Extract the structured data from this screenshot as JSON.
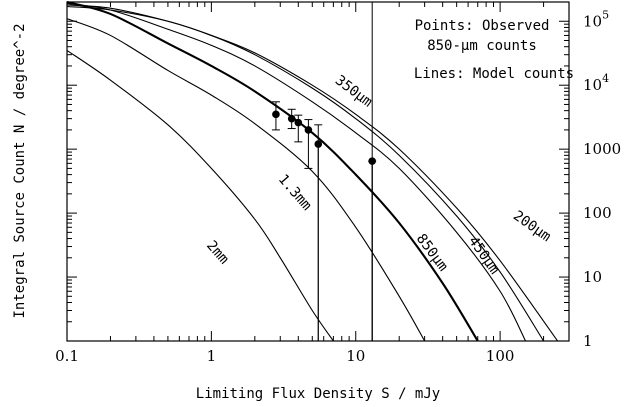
{
  "chart_data": {
    "type": "line",
    "title": "",
    "xlabel": "Limiting Flux Density S / mJy",
    "ylabel": "Integral Source Count N / degree^-2",
    "x_scale": "log",
    "y_scale": "log",
    "xlim": [
      0.1,
      300
    ],
    "ylim": [
      1,
      200000
    ],
    "x_ticks": [
      {
        "value": 0.1,
        "label": "0.1"
      },
      {
        "value": 1,
        "label": "1"
      },
      {
        "value": 10,
        "label": "10"
      },
      {
        "value": 100,
        "label": "100"
      }
    ],
    "y_ticks_right": [
      {
        "value": 100000,
        "label": "10^5"
      },
      {
        "value": 10000,
        "label": "10^4"
      },
      {
        "value": 1000,
        "label": "1000"
      },
      {
        "value": 100,
        "label": "100"
      },
      {
        "value": 10,
        "label": "10"
      },
      {
        "value": 1,
        "label": "1"
      }
    ],
    "legend": {
      "placement": "top-right",
      "points_line1": "Points: Observed",
      "points_line2": "850-μm counts",
      "lines_text": "Lines: Model counts"
    },
    "series": [
      {
        "name": "2mm",
        "label_rotation": 49,
        "label_at": {
          "x": 1.05,
          "y": 22
        },
        "x": [
          0.1,
          0.2,
          0.5,
          1,
          2,
          3,
          5,
          7
        ],
        "values": [
          35000,
          12000,
          2400,
          500,
          80,
          20,
          3,
          1
        ]
      },
      {
        "name": "1.3mm",
        "label_rotation": 49,
        "label_at": {
          "x": 3.6,
          "y": 190
        },
        "x": [
          0.1,
          0.2,
          0.5,
          1,
          2,
          5,
          10,
          20,
          30
        ],
        "values": [
          110000,
          60000,
          17000,
          7000,
          2500,
          450,
          60,
          5,
          1
        ]
      },
      {
        "name": "850μm",
        "label_rotation": 53,
        "label_at": {
          "x": 32,
          "y": 22
        },
        "bold": true,
        "x": [
          0.1,
          0.2,
          0.5,
          1,
          2,
          5,
          10,
          20,
          40,
          70
        ],
        "values": [
          200000,
          130000,
          45000,
          20000,
          8000,
          1800,
          400,
          70,
          8,
          1
        ]
      },
      {
        "name": "450μm",
        "label_rotation": 55,
        "label_at": {
          "x": 73,
          "y": 20
        },
        "x": [
          0.1,
          0.2,
          0.5,
          1,
          2,
          5,
          10,
          20,
          50,
          100,
          150
        ],
        "values": [
          190000,
          150000,
          75000,
          42000,
          20000,
          5500,
          1800,
          500,
          50,
          6,
          1
        ]
      },
      {
        "name": "350μm",
        "label_rotation": 37,
        "label_at": {
          "x": 9.3,
          "y": 7100
        },
        "x": [
          0.1,
          0.2,
          0.5,
          1,
          2,
          5,
          10,
          20,
          50,
          100,
          200
        ],
        "values": [
          180000,
          160000,
          100000,
          60000,
          30000,
          9000,
          3000,
          800,
          90,
          12,
          1
        ]
      },
      {
        "name": "200μm",
        "label_rotation": 35,
        "label_at": {
          "x": 160,
          "y": 55
        },
        "x": [
          0.1,
          0.2,
          0.5,
          1,
          2,
          5,
          10,
          20,
          50,
          100,
          250
        ],
        "values": [
          170000,
          150000,
          100000,
          60000,
          32000,
          10000,
          3500,
          1000,
          120,
          18,
          1
        ]
      }
    ],
    "observed": {
      "name": "Observed 850-μm counts",
      "x": [
        2.8,
        3.6,
        4.0,
        4.7,
        5.5,
        13
      ],
      "values": [
        3500,
        3000,
        2600,
        2000,
        1200,
        650
      ],
      "err_low": [
        1500,
        900,
        1300,
        1500,
        1199,
        649
      ],
      "err_high": [
        2000,
        1200,
        800,
        900,
        1200,
        0
      ],
      "lower_limit_to_axis": [
        false,
        false,
        false,
        false,
        true,
        true
      ],
      "vertical_line_x": 13
    }
  }
}
